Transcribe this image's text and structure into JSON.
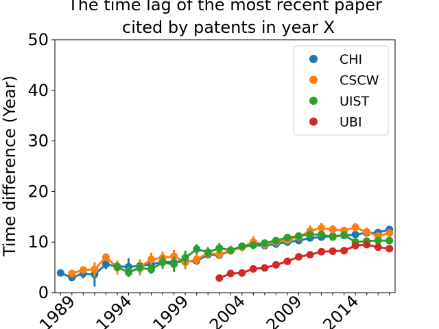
{
  "chart_data": {
    "type": "line",
    "title_line1": "The time lag of the most recent paper",
    "title_line2": "cited by patents in year X",
    "xlabel": "",
    "ylabel": "Time difference (Year)",
    "xlim": [
      1988,
      2017
    ],
    "ylim": [
      0,
      50
    ],
    "yticks": [
      0,
      10,
      20,
      30,
      40,
      50
    ],
    "xticks": [
      1989,
      1994,
      1999,
      2004,
      2009,
      2014
    ],
    "legend": {
      "position": "top-right"
    },
    "series": [
      {
        "name": "CHI",
        "color": "#1f77b4",
        "x": [
          1988,
          1989,
          1990,
          1991,
          1992,
          1993,
          1994,
          1995,
          1996,
          1997,
          1998,
          1999,
          2000,
          2001,
          2002,
          2003,
          2004,
          2005,
          2006,
          2007,
          2008,
          2009,
          2010,
          2011,
          2012,
          2013,
          2014,
          2015,
          2016,
          2017
        ],
        "y": [
          3.9,
          3.0,
          3.8,
          3.6,
          5.6,
          5.2,
          5.1,
          5.3,
          5.6,
          6.1,
          6.0,
          6.2,
          6.3,
          7.5,
          7.4,
          8.3,
          9.0,
          9.4,
          9.3,
          9.6,
          10.0,
          10.3,
          10.8,
          11.0,
          11.2,
          11.3,
          11.5,
          11.8,
          11.9,
          12.5
        ],
        "err": [
          0.6,
          0.4,
          1.0,
          2.4,
          1.0,
          1.0,
          1.7,
          1.3,
          0.8,
          0.8,
          0.8,
          1.0,
          0.7,
          0.5,
          0.5,
          0.5,
          0.5,
          0.5,
          0.5,
          0.5,
          0.5,
          0.5,
          0.4,
          0.4,
          0.4,
          0.4,
          0.4,
          0.4,
          0.4,
          0.5
        ]
      },
      {
        "name": "CSCW",
        "color": "#ff7f0e",
        "x": [
          1989,
          1990,
          1991,
          1992,
          1993,
          1994,
          1995,
          1996,
          1997,
          1998,
          1999,
          2000,
          2001,
          2002,
          2003,
          2004,
          2005,
          2006,
          2007,
          2008,
          2009,
          2010,
          2011,
          2012,
          2013,
          2014,
          2015,
          2016,
          2017
        ],
        "y": [
          3.8,
          4.5,
          4.6,
          7.0,
          5.0,
          4.1,
          5.0,
          6.6,
          6.9,
          7.2,
          6.0,
          6.6,
          7.8,
          7.6,
          8.4,
          9.0,
          10.0,
          9.5,
          10.0,
          10.4,
          11.0,
          12.2,
          12.8,
          12.5,
          12.3,
          12.9,
          12.0,
          11.2,
          11.8
        ],
        "err": [
          0.6,
          0.7,
          1.4,
          0.8,
          1.4,
          1.0,
          1.6,
          1.3,
          1.2,
          1.2,
          1.4,
          1.2,
          1.0,
          0.9,
          0.9,
          0.8,
          1.2,
          0.8,
          0.7,
          0.7,
          0.7,
          1.1,
          1.0,
          0.9,
          0.7,
          0.9,
          0.9,
          0.8,
          0.7
        ]
      },
      {
        "name": "UIST",
        "color": "#2ca02c",
        "x": [
          1993,
          1994,
          1995,
          1996,
          1997,
          1998,
          1999,
          2000,
          2001,
          2002,
          2003,
          2004,
          2005,
          2006,
          2007,
          2008,
          2009,
          2010,
          2011,
          2012,
          2013,
          2014,
          2015,
          2016,
          2017
        ],
        "y": [
          5.1,
          4.0,
          4.9,
          4.6,
          6.0,
          5.6,
          6.9,
          8.6,
          8.0,
          8.8,
          8.4,
          9.2,
          9.4,
          9.8,
          10.3,
          10.9,
          11.2,
          11.5,
          11.5,
          11.0,
          11.4,
          10.0,
          10.2,
          10.3,
          10.3
        ],
        "err": [
          0.9,
          0.9,
          1.0,
          0.9,
          1.3,
          1.5,
          1.4,
          1.0,
          1.0,
          1.0,
          0.7,
          0.7,
          0.8,
          0.6,
          0.6,
          0.6,
          0.6,
          0.6,
          0.6,
          0.6,
          0.6,
          0.6,
          0.6,
          0.6,
          0.6
        ]
      },
      {
        "name": "UBI",
        "color": "#d62728",
        "x": [
          2002,
          2003,
          2004,
          2005,
          2006,
          2007,
          2008,
          2009,
          2010,
          2011,
          2012,
          2013,
          2014,
          2015,
          2016,
          2017
        ],
        "y": [
          2.9,
          3.8,
          3.9,
          4.7,
          4.9,
          5.5,
          6.2,
          7.1,
          7.5,
          8.1,
          8.2,
          8.3,
          9.3,
          9.5,
          9.0,
          8.7
        ],
        "err": [
          0.4,
          0.4,
          0.4,
          0.4,
          0.4,
          0.4,
          0.4,
          0.4,
          0.4,
          0.4,
          0.4,
          0.4,
          0.4,
          0.4,
          0.4,
          0.4
        ]
      }
    ]
  }
}
